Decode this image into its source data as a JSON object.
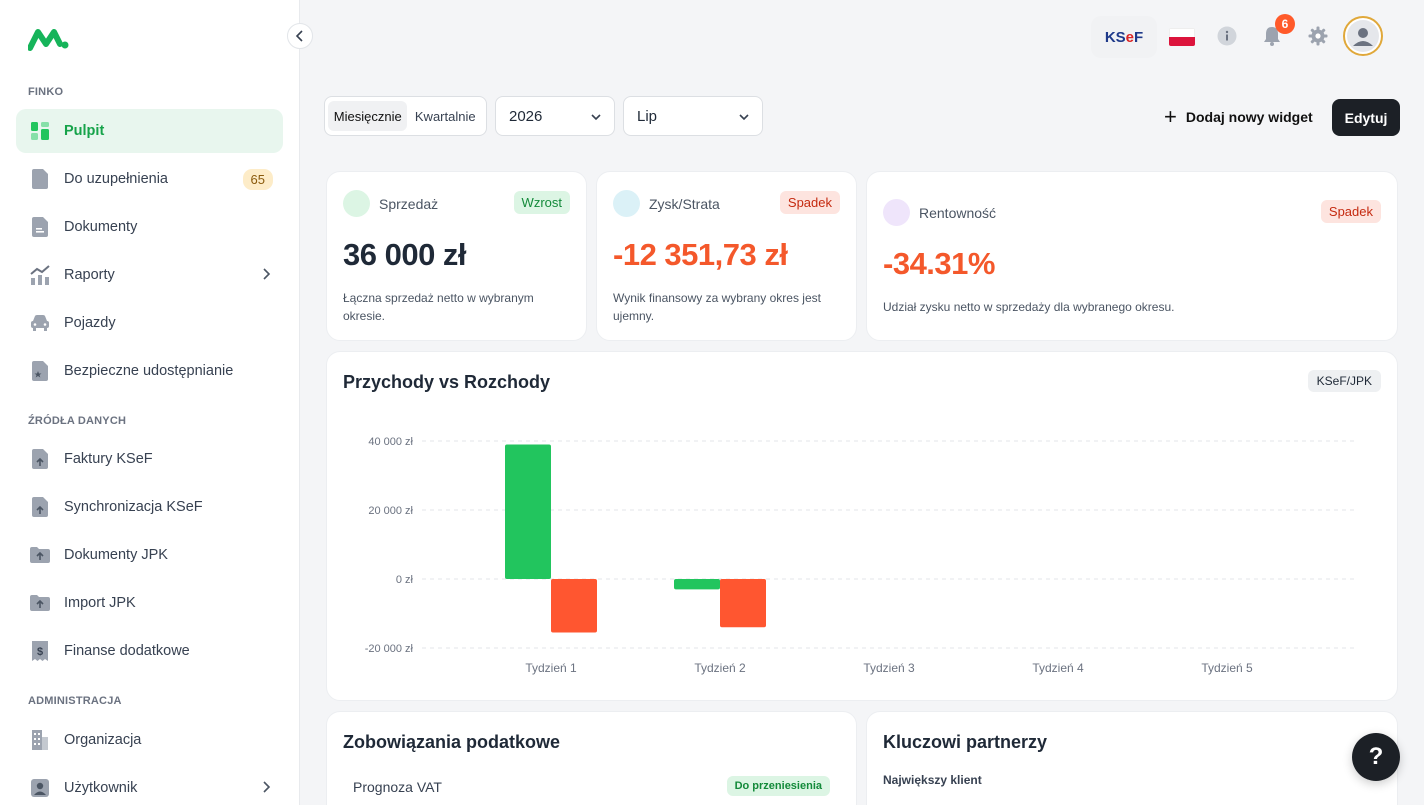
{
  "sidebar": {
    "sections": [
      "FINKO",
      "ŹRÓDŁA DANYCH",
      "ADMINISTRACJA"
    ],
    "items": [
      {
        "label": "Pulpit",
        "icon": "dashboard-icon",
        "active": true
      },
      {
        "label": "Do uzupełnienia",
        "icon": "document-icon",
        "badge": "65"
      },
      {
        "label": "Dokumenty",
        "icon": "documents-icon"
      },
      {
        "label": "Raporty",
        "icon": "chart-icon"
      },
      {
        "label": "Pojazdy",
        "icon": "car-icon"
      },
      {
        "label": "Bezpieczne udostępnianie",
        "icon": "secure-share-icon"
      },
      {
        "label": "Faktury KSeF",
        "icon": "upload-document-icon"
      },
      {
        "label": "Synchronizacja KSeF",
        "icon": "upload-document-icon"
      },
      {
        "label": "Dokumenty JPK",
        "icon": "upload-folder-icon"
      },
      {
        "label": "Import JPK",
        "icon": "upload-folder-icon"
      },
      {
        "label": "Finanse dodatkowe",
        "icon": "dollar-receipt-icon"
      },
      {
        "label": "Organizacja",
        "icon": "building-icon"
      },
      {
        "label": "Użytkownik",
        "icon": "user-icon"
      }
    ]
  },
  "topbar": {
    "ksef_prefix": "KS",
    "ksef_e": "e",
    "ksef_suffix": "F",
    "notifications": "6"
  },
  "controls": {
    "period_monthly": "Miesięcznie",
    "period_quarterly": "Kwartalnie",
    "year": "2026",
    "month": "Lip",
    "add_widget": "Dodaj nowy widget",
    "edit": "Edytuj"
  },
  "kpis": [
    {
      "title": "Sprzedaż",
      "status": "Wzrost",
      "value": "36 000 zł",
      "desc": "Łączna sprzedaż netto w wybranym okresie.",
      "dot_color": "#dcf5e4",
      "value_color": "#1f2937"
    },
    {
      "title": "Zysk/Strata",
      "status": "Spadek",
      "value": "-12 351,73 zł",
      "desc": "Wynik finansowy za wybrany okres jest ujemny.",
      "dot_color": "#dbf1f7",
      "value_color": "#f4582b"
    },
    {
      "title": "Rentowność",
      "status": "Spadek",
      "value": "-34.31%",
      "desc": "Udział zysku netto w sprzedaży dla wybranego okresu.",
      "dot_color": "#efe5fb",
      "value_color": "#f4582b"
    }
  ],
  "chart_card": {
    "title": "Przychody vs Rozchody",
    "tag": "KSeF/JPK"
  },
  "chart_data": {
    "type": "bar",
    "categories": [
      "Tydzień 1",
      "Tydzień 2",
      "Tydzień 3",
      "Tydzień 4",
      "Tydzień 5"
    ],
    "series": [
      {
        "values": [
          39000,
          -3000,
          0,
          0,
          0
        ],
        "color": "#22c55e"
      },
      {
        "values": [
          -15500,
          -14000,
          0,
          0,
          0
        ],
        "color": "#ff5630"
      }
    ],
    "yticks": [
      "40 000 zł",
      "20 000 zł",
      "0 zł",
      "-20 000 zł"
    ],
    "ytick_values": [
      40000,
      20000,
      0,
      -20000
    ],
    "ylim": [
      -20000,
      40000
    ],
    "grid": true
  },
  "tax_card": {
    "title": "Zobowiązania podatkowe",
    "row_label": "Prognoza VAT",
    "row_status": "Do przeniesienia"
  },
  "partners_card": {
    "title": "Kluczowi partnerzy",
    "subtitle": "Największy klient"
  },
  "help": "?"
}
